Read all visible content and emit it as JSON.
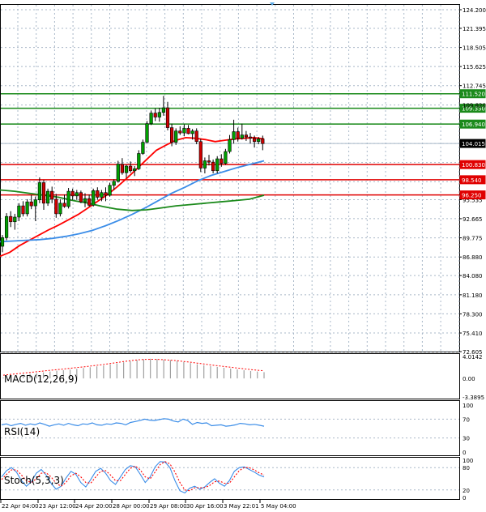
{
  "colors": {
    "background": "#ffffff",
    "frame": "#000000",
    "grid": "#a9b8c8",
    "bull_candle": "#00a000",
    "bear_candle": "#d00000",
    "ma_fast": "#ff0000",
    "ma_mid": "#3b8de8",
    "ma_slow": "#1c8a1c",
    "resistance_line": "#1a8a1a",
    "support_line": "#e00000",
    "current_price_line": "#a9b8c8",
    "macd_hist": "#a0a0a0",
    "macd_signal": "#ff0000",
    "rsi_line": "#3b8de8",
    "stoch_main": "#3b8de8",
    "stoch_signal": "#ff0000",
    "top_marker": "#5aa9e6"
  },
  "indicators": {
    "macd_label": "MACD(12,26,9)",
    "rsi_label": "RSI(14)",
    "stoch_label": "Stoch(5,3,3)"
  },
  "chart_data": [
    {
      "type": "candlestick",
      "panel": "price",
      "ylim": [
        72.605,
        124.2
      ],
      "y_ticks": [
        "124.200",
        "121.395",
        "118.505",
        "115.625",
        "112.745",
        "109.820",
        "106.940",
        "104.015",
        "101.135",
        "98.255",
        "95.535",
        "92.665",
        "89.775",
        "86.880",
        "84.080",
        "81.180",
        "78.300",
        "75.410",
        "72.605"
      ],
      "x_ticks": [
        "22 Apr 04:00",
        "23 Apr 12:00",
        "24 Apr 20:00",
        "28 Apr 00:00",
        "29 Apr 08:00",
        "30 Apr 16:00",
        "3 May 22:01",
        "5 May 04:00"
      ],
      "candles": [
        [
          88.5,
          90.2,
          87.6,
          89.8
        ],
        [
          89.8,
          93.5,
          89.4,
          93.0
        ],
        [
          93.0,
          93.8,
          91.4,
          92.2
        ],
        [
          92.2,
          93.4,
          91.0,
          92.9
        ],
        [
          92.9,
          95.0,
          92.3,
          94.6
        ],
        [
          94.6,
          95.3,
          93.0,
          93.4
        ],
        [
          93.4,
          95.6,
          93.0,
          95.2
        ],
        [
          95.2,
          96.2,
          94.1,
          94.6
        ],
        [
          94.6,
          96.0,
          92.3,
          95.5
        ],
        [
          95.5,
          98.9,
          95.0,
          98.1
        ],
        [
          98.1,
          98.5,
          94.0,
          95.0
        ],
        [
          95.0,
          97.2,
          94.6,
          96.8
        ],
        [
          96.8,
          97.5,
          95.0,
          95.6
        ],
        [
          95.6,
          96.4,
          92.8,
          93.4
        ],
        [
          93.4,
          95.6,
          93.0,
          95.0
        ],
        [
          95.0,
          96.3,
          94.3,
          94.5
        ],
        [
          94.5,
          97.3,
          94.2,
          96.8
        ],
        [
          96.8,
          97.2,
          95.5,
          96.1
        ],
        [
          96.1,
          97.0,
          95.5,
          96.6
        ],
        [
          96.6,
          96.9,
          95.0,
          95.2
        ],
        [
          95.2,
          96.5,
          94.4,
          95.7
        ],
        [
          95.7,
          96.3,
          94.5,
          94.7
        ],
        [
          94.7,
          97.2,
          94.5,
          96.9
        ],
        [
          96.9,
          97.4,
          95.5,
          95.9
        ],
        [
          95.9,
          97.0,
          95.3,
          96.6
        ],
        [
          96.6,
          97.4,
          95.3,
          96.2
        ],
        [
          96.2,
          98.1,
          96.0,
          97.7
        ],
        [
          97.7,
          98.6,
          97.0,
          98.3
        ],
        [
          98.3,
          101.4,
          98.1,
          100.9
        ],
        [
          100.9,
          101.8,
          99.3,
          99.6
        ],
        [
          99.6,
          100.8,
          98.8,
          100.6
        ],
        [
          100.6,
          101.3,
          99.6,
          99.9
        ],
        [
          99.9,
          100.6,
          99.1,
          100.2
        ],
        [
          100.2,
          103.0,
          100.0,
          102.5
        ],
        [
          102.5,
          104.6,
          102.3,
          104.2
        ],
        [
          104.2,
          107.4,
          104.1,
          107.0
        ],
        [
          107.0,
          109.0,
          106.8,
          108.6
        ],
        [
          108.6,
          109.3,
          107.4,
          108.0
        ],
        [
          108.0,
          109.4,
          107.3,
          108.7
        ],
        [
          108.7,
          111.2,
          108.2,
          109.4
        ],
        [
          109.4,
          110.3,
          106.0,
          106.4
        ],
        [
          106.4,
          107.0,
          103.6,
          104.2
        ],
        [
          104.2,
          106.3,
          103.8,
          105.9
        ],
        [
          105.9,
          106.6,
          105.3,
          105.6
        ],
        [
          105.6,
          106.9,
          105.1,
          106.3
        ],
        [
          106.3,
          106.8,
          105.4,
          105.5
        ],
        [
          105.5,
          106.2,
          104.6,
          105.9
        ],
        [
          105.9,
          106.3,
          103.9,
          104.3
        ],
        [
          104.3,
          104.7,
          99.7,
          100.3
        ],
        [
          100.3,
          101.9,
          99.5,
          101.4
        ],
        [
          101.4,
          102.3,
          100.7,
          101.2
        ],
        [
          101.2,
          101.6,
          99.5,
          99.9
        ],
        [
          99.9,
          102.1,
          99.5,
          101.7
        ],
        [
          101.7,
          102.4,
          100.5,
          101.0
        ],
        [
          101.0,
          103.2,
          100.8,
          102.8
        ],
        [
          102.8,
          105.3,
          102.5,
          104.6
        ],
        [
          104.6,
          107.6,
          104.0,
          105.8
        ],
        [
          105.8,
          106.4,
          104.3,
          104.8
        ],
        [
          104.8,
          107.0,
          104.6,
          105.3
        ],
        [
          105.3,
          105.9,
          104.4,
          105.0
        ],
        [
          105.0,
          105.6,
          104.0,
          104.8
        ],
        [
          104.8,
          105.2,
          103.4,
          104.3
        ],
        [
          104.3,
          105.0,
          103.9,
          104.7
        ],
        [
          104.7,
          105.2,
          103.0,
          104.0
        ]
      ],
      "moving_averages": [
        {
          "values": [
            87.0,
            87.6,
            88.6,
            89.4,
            90.2,
            91.0,
            91.7,
            92.5,
            93.3,
            94.3,
            95.3,
            96.3,
            97.5,
            98.8,
            100.2,
            101.6,
            103.0,
            103.8,
            104.5,
            104.9,
            104.8,
            104.6,
            104.3,
            104.5,
            104.7,
            104.8,
            104.9,
            104.7
          ]
        },
        {
          "values": [
            89.2,
            89.3,
            89.4,
            89.5,
            89.7,
            90.0,
            90.4,
            90.9,
            91.6,
            92.4,
            93.3,
            94.3,
            95.4,
            96.5,
            97.4,
            98.4,
            99.2,
            99.8,
            100.4,
            100.9,
            101.4
          ]
        },
        {
          "values": [
            97.0,
            96.8,
            96.5,
            96.2,
            95.9,
            95.4,
            95.0,
            94.5,
            94.1,
            93.9,
            94.0,
            94.3,
            94.6,
            94.8,
            95.0,
            95.2,
            95.4,
            95.6,
            96.2
          ]
        }
      ],
      "horizontal_levels": {
        "resistance": [
          "111.520",
          "109.330",
          "106.940"
        ],
        "support": [
          "100.830",
          "98.540",
          "96.250"
        ],
        "current_price": "104.015",
        "stray_label": "109.820"
      }
    },
    {
      "type": "bar",
      "panel": "macd",
      "title": "MACD(12,26,9)",
      "y_ticks": [
        "4.0142",
        "0.00",
        "-3.3895"
      ],
      "ylim": [
        -3.3895,
        4.0142
      ],
      "histogram": [
        0.15,
        0.3,
        0.5,
        0.7,
        0.85,
        0.95,
        1.1,
        1.25,
        1.4,
        1.5,
        1.6,
        1.75,
        1.9,
        2.05,
        2.2,
        2.35,
        2.55,
        2.75,
        2.95,
        3.15,
        3.35,
        3.5,
        3.6,
        3.55,
        3.45,
        3.35,
        3.2,
        3.0,
        2.8,
        2.6,
        2.4,
        2.25,
        2.1,
        1.95,
        1.8,
        1.65,
        1.5,
        1.35,
        1.25,
        1.15
      ],
      "signal": [
        0.6,
        0.72,
        0.85,
        0.98,
        1.1,
        1.22,
        1.35,
        1.48,
        1.6,
        1.72,
        1.85,
        1.98,
        2.1,
        2.25,
        2.4,
        2.55,
        2.72,
        2.9,
        3.08,
        3.25,
        3.38,
        3.46,
        3.5,
        3.48,
        3.42,
        3.34,
        3.24,
        3.1,
        2.96,
        2.8,
        2.64,
        2.48,
        2.32,
        2.18,
        2.04,
        1.9,
        1.76,
        1.62,
        1.5,
        1.4
      ]
    },
    {
      "type": "line",
      "panel": "rsi",
      "title": "RSI(14)",
      "y_ticks": [
        "100",
        "70",
        "30",
        "0"
      ],
      "ylim": [
        0,
        100
      ],
      "values": [
        58,
        60,
        56,
        59,
        61,
        57,
        60,
        58,
        62,
        59,
        55,
        58,
        60,
        57,
        61,
        58,
        56,
        60,
        59,
        62,
        58,
        57,
        60,
        59,
        62,
        61,
        58,
        63,
        65,
        67,
        70,
        68,
        67,
        69,
        71,
        70,
        66,
        64,
        70,
        67,
        59,
        63,
        61,
        62,
        56,
        57,
        58,
        55,
        56,
        58,
        61,
        60,
        58,
        59,
        57,
        55
      ]
    },
    {
      "type": "line",
      "panel": "stochastic",
      "title": "Stoch(5,3,3)",
      "y_ticks": [
        "100",
        "80",
        "20",
        "0"
      ],
      "ylim": [
        0,
        100
      ],
      "series": [
        {
          "values": [
            55,
            72,
            80,
            68,
            45,
            30,
            42,
            65,
            75,
            60,
            38,
            22,
            30,
            52,
            70,
            62,
            40,
            28,
            48,
            70,
            78,
            65,
            45,
            35,
            55,
            75,
            85,
            82,
            62,
            40,
            55,
            82,
            96,
            95,
            80,
            45,
            18,
            12,
            25,
            30,
            22,
            28,
            40,
            50,
            38,
            30,
            45,
            70,
            80,
            82,
            75,
            68,
            60,
            55
          ]
        },
        {
          "values": [
            48,
            62,
            74,
            74,
            60,
            45,
            40,
            50,
            65,
            66,
            55,
            38,
            30,
            40,
            58,
            65,
            55,
            40,
            38,
            55,
            70,
            72,
            60,
            45,
            45,
            62,
            78,
            84,
            74,
            55,
            50,
            68,
            88,
            96,
            90,
            68,
            40,
            20,
            18,
            26,
            26,
            26,
            32,
            42,
            44,
            38,
            38,
            55,
            72,
            80,
            80,
            74,
            66,
            60
          ]
        }
      ]
    }
  ]
}
